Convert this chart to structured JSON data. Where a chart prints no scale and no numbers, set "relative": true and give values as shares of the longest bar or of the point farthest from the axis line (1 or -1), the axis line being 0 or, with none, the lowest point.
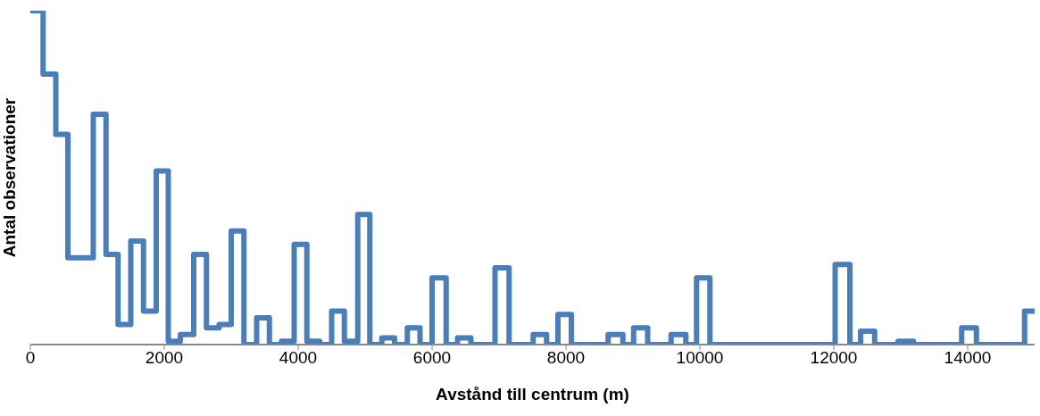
{
  "chart_data": {
    "type": "step",
    "xlabel": "Avstånd till centrum (m)",
    "ylabel": "Antal observationer",
    "relative": true,
    "color": "#4a7ebb",
    "x": [
      0,
      190,
      380,
      560,
      940,
      1130,
      1310,
      1500,
      1690,
      1880,
      2060,
      2240,
      2440,
      2630,
      2820,
      3000,
      3190,
      3380,
      3570,
      3750,
      3940,
      4130,
      4320,
      4500,
      4690,
      4890,
      5070,
      5250,
      5440,
      5630,
      5820,
      6000,
      6210,
      6380,
      6580,
      6940,
      7150,
      7510,
      7710,
      7880,
      8080,
      8630,
      8850,
      9010,
      9220,
      9570,
      9790,
      9950,
      10150,
      12020,
      12240,
      12400,
      12610,
      12960,
      13190,
      13910,
      14130,
      14850,
      15000
    ],
    "values": [
      1.0,
      0.81,
      0.63,
      0.26,
      0.69,
      0.27,
      0.06,
      0.31,
      0.1,
      0.52,
      0.01,
      0.03,
      0.27,
      0.05,
      0.06,
      0.34,
      0,
      0.08,
      0,
      0.01,
      0.3,
      0.01,
      0,
      0.1,
      0.01,
      0.39,
      0,
      0.02,
      0,
      0.05,
      0,
      0.2,
      0,
      0.02,
      0,
      0.23,
      0,
      0.03,
      0,
      0.09,
      0,
      0.03,
      0,
      0.05,
      0,
      0.03,
      0,
      0.2,
      0,
      0.24,
      0,
      0.04,
      0,
      0.01,
      0,
      0.05,
      0,
      0.1,
      0.1
    ],
    "xlim": [
      0,
      15000
    ],
    "xticks": [
      0,
      2000,
      4000,
      6000,
      8000,
      10000,
      12000,
      14000
    ]
  }
}
